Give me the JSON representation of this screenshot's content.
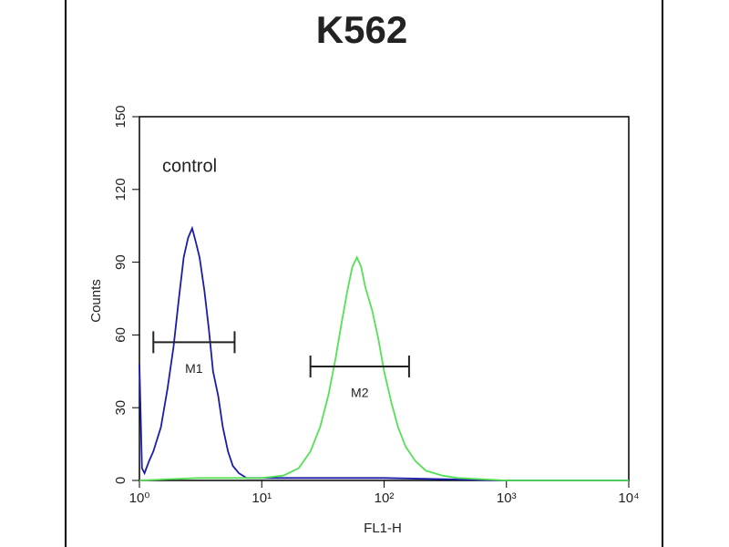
{
  "chart_data": {
    "type": "histogram-line",
    "title": "K562",
    "x_label": "FL1-H",
    "y_label": "Counts",
    "annotation": "control",
    "log_x": true,
    "xlim": [
      1,
      10000
    ],
    "ylim": [
      0,
      150
    ],
    "xticks": [
      {
        "value": 1,
        "label": "10⁰"
      },
      {
        "value": 10,
        "label": "10¹"
      },
      {
        "value": 100,
        "label": "10²"
      },
      {
        "value": 1000,
        "label": "10³"
      },
      {
        "value": 10000,
        "label": "10⁴"
      }
    ],
    "yticks": [
      0,
      30,
      60,
      90,
      120,
      150
    ],
    "series": [
      {
        "color": "#1c1ca8",
        "x": [
          1,
          1.05,
          1.1,
          1.2,
          1.3,
          1.5,
          1.7,
          1.9,
          2.1,
          2.3,
          2.5,
          2.7,
          2.9,
          3.1,
          3.4,
          3.7,
          4.0,
          4.4,
          4.8,
          5.3,
          5.8,
          6.5,
          7.5,
          10,
          20,
          50,
          100,
          1000,
          10000
        ],
        "values": [
          48,
          5,
          3,
          8,
          12,
          22,
          38,
          55,
          75,
          92,
          100,
          104,
          98,
          92,
          78,
          62,
          45,
          35,
          22,
          12,
          6,
          3,
          1,
          1,
          1,
          1,
          1,
          0,
          0
        ]
      },
      {
        "color": "#55e055",
        "x": [
          1,
          3,
          10,
          15,
          20,
          25,
          30,
          35,
          40,
          45,
          50,
          55,
          60,
          65,
          70,
          80,
          90,
          100,
          115,
          130,
          150,
          180,
          220,
          300,
          400,
          1000,
          10000
        ],
        "values": [
          0,
          1,
          1,
          2,
          5,
          12,
          22,
          35,
          50,
          65,
          78,
          88,
          92,
          88,
          80,
          70,
          58,
          45,
          32,
          22,
          14,
          8,
          4,
          2,
          1,
          0,
          0
        ]
      }
    ],
    "markers": [
      {
        "label": "M1",
        "range": [
          1.3,
          6
        ],
        "y": 57
      },
      {
        "label": "M2",
        "range": [
          25,
          160
        ],
        "y": 47
      }
    ]
  }
}
